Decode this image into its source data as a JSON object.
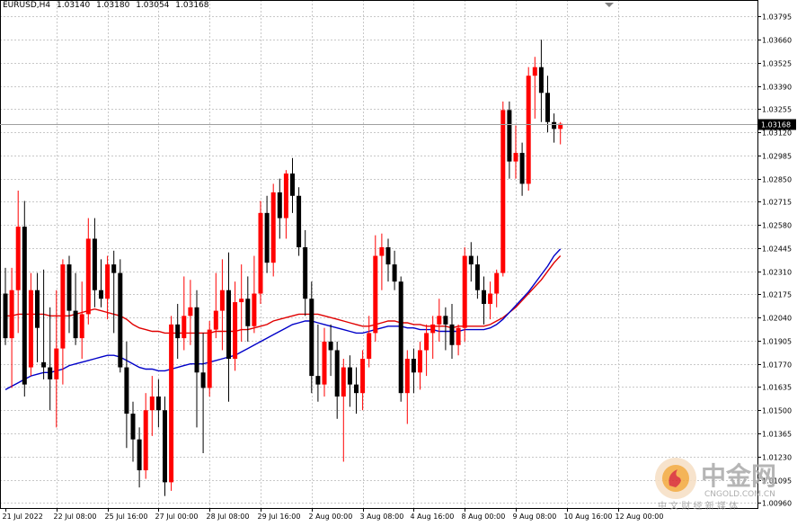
{
  "header": {
    "symbol": "EURUSD,H4",
    "open": "1.03140",
    "high": "1.03180",
    "low": "1.03054",
    "close": "1.03168"
  },
  "watermark": {
    "brand": "中金网",
    "url": "CNGOLD.COM.CN",
    "tagline": "中 文 财 经 新 媒 体"
  },
  "colors": {
    "bull": "#ff0000",
    "bear": "#000000",
    "ma_red": "#e00000",
    "ma_blue": "#0000c8",
    "grid": "#c8c8c8",
    "background": "#ffffff",
    "price_label_bg": "#000000"
  },
  "chart_data": {
    "type": "candlestick",
    "title": "EURUSD,H4",
    "timeframe": "H4",
    "grid": true,
    "current_price": "1.03168",
    "ylim": [
      1.0093,
      1.0386
    ],
    "y_ticks": [
      "1.03795",
      "1.03660",
      "1.03525",
      "1.03390",
      "1.03255",
      "1.03120",
      "1.02985",
      "1.02850",
      "1.02715",
      "1.02580",
      "1.02445",
      "1.02310",
      "1.02175",
      "1.02040",
      "1.01905",
      "1.01770",
      "1.01635",
      "1.01500",
      "1.01365",
      "1.01230",
      "1.01095",
      "1.00960"
    ],
    "x_labels": [
      {
        "label": "21 Jul 2022",
        "bar": 0
      },
      {
        "label": "22 Jul 08:00",
        "bar": 8
      },
      {
        "label": "25 Jul 16:00",
        "bar": 16
      },
      {
        "label": "27 Jul 00:00",
        "bar": 24
      },
      {
        "label": "28 Jul 08:00",
        "bar": 32
      },
      {
        "label": "29 Jul 16:00",
        "bar": 40
      },
      {
        "label": "2 Aug 00:00",
        "bar": 48
      },
      {
        "label": "3 Aug 08:00",
        "bar": 56
      },
      {
        "label": "4 Aug 16:00",
        "bar": 64
      },
      {
        "label": "8 Aug 00:00",
        "bar": 72
      },
      {
        "label": "9 Aug 08:00",
        "bar": 80
      },
      {
        "label": "10 Aug 16:00",
        "bar": 88
      },
      {
        "label": "12 Aug 00:00",
        "bar": 96
      }
    ],
    "ohlc": [
      [
        1.0218,
        1.0233,
        1.0188,
        1.0192
      ],
      [
        1.0192,
        1.0233,
        1.0163,
        1.022
      ],
      [
        1.022,
        1.0278,
        1.0195,
        1.0257
      ],
      [
        1.0257,
        1.0272,
        1.0158,
        1.0165
      ],
      [
        1.0175,
        1.023,
        1.017,
        1.022
      ],
      [
        1.022,
        1.023,
        1.0178,
        1.0198
      ],
      [
        1.0178,
        1.0232,
        1.0168,
        1.0175
      ],
      [
        1.0175,
        1.021,
        1.015,
        1.0168
      ],
      [
        1.0168,
        1.022,
        1.014,
        1.0186
      ],
      [
        1.0186,
        1.0238,
        1.0165,
        1.0235
      ],
      [
        1.0235,
        1.024,
        1.0195,
        1.0208
      ],
      [
        1.0208,
        1.023,
        1.0188,
        1.0192
      ],
      [
        1.0192,
        1.0225,
        1.018,
        1.0206
      ],
      [
        1.0206,
        1.0262,
        1.02,
        1.025
      ],
      [
        1.025,
        1.0262,
        1.021,
        1.022
      ],
      [
        1.022,
        1.0238,
        1.021,
        1.0215
      ],
      [
        1.0215,
        1.024,
        1.0203,
        1.0235
      ],
      [
        1.0235,
        1.0243,
        1.0195,
        1.023
      ],
      [
        1.023,
        1.0238,
        1.0172,
        1.0175
      ],
      [
        1.0175,
        1.019,
        1.0128,
        1.0148
      ],
      [
        1.0148,
        1.0155,
        1.012,
        1.0133
      ],
      [
        1.0133,
        1.014,
        1.0105,
        1.0115
      ],
      [
        1.0115,
        1.016,
        1.011,
        1.015
      ],
      [
        1.015,
        1.017,
        1.0135,
        1.0158
      ],
      [
        1.0158,
        1.0168,
        1.014,
        1.015
      ],
      [
        1.015,
        1.0158,
        1.01,
        1.0108
      ],
      [
        1.0108,
        1.0205,
        1.0103,
        1.02
      ],
      [
        1.02,
        1.0212,
        1.018,
        1.0192
      ],
      [
        1.0192,
        1.0228,
        1.0185,
        1.0205
      ],
      [
        1.0205,
        1.0226,
        1.0188,
        1.021
      ],
      [
        1.021,
        1.022,
        1.014,
        1.0172
      ],
      [
        1.0172,
        1.0195,
        1.0125,
        1.0163
      ],
      [
        1.0163,
        1.0202,
        1.0158,
        1.0197
      ],
      [
        1.0197,
        1.023,
        1.0192,
        1.0208
      ],
      [
        1.0208,
        1.0238,
        1.0185,
        1.022
      ],
      [
        1.022,
        1.0242,
        1.0155,
        1.018
      ],
      [
        1.018,
        1.0225,
        1.0173,
        1.0213
      ],
      [
        1.0213,
        1.0235,
        1.019,
        1.0215
      ],
      [
        1.0215,
        1.0228,
        1.019,
        1.0199
      ],
      [
        1.0199,
        1.024,
        1.0195,
        1.0218
      ],
      [
        1.0218,
        1.0272,
        1.0212,
        1.0265
      ],
      [
        1.0265,
        1.0275,
        1.023,
        1.0236
      ],
      [
        1.0236,
        1.0282,
        1.0228,
        1.0277
      ],
      [
        1.0277,
        1.0285,
        1.025,
        1.0262
      ],
      [
        1.0262,
        1.029,
        1.025,
        1.0288
      ],
      [
        1.0288,
        1.0297,
        1.0265,
        1.0275
      ],
      [
        1.0275,
        1.028,
        1.024,
        1.0245
      ],
      [
        1.0245,
        1.0255,
        1.0205,
        1.0215
      ],
      [
        1.0215,
        1.0225,
        1.016,
        1.017
      ],
      [
        1.017,
        1.02,
        1.0155,
        1.0165
      ],
      [
        1.0165,
        1.0198,
        1.0158,
        1.019
      ],
      [
        1.019,
        1.02,
        1.017,
        1.0185
      ],
      [
        1.0185,
        1.019,
        1.0145,
        1.0158
      ],
      [
        1.0158,
        1.018,
        1.012,
        1.0175
      ],
      [
        1.0175,
        1.0182,
        1.0152,
        1.0165
      ],
      [
        1.0165,
        1.0175,
        1.0148,
        1.016
      ],
      [
        1.016,
        1.0185,
        1.015,
        1.018
      ],
      [
        1.018,
        1.0205,
        1.0175,
        1.0195
      ],
      [
        1.0195,
        1.0252,
        1.019,
        1.024
      ],
      [
        1.024,
        1.0253,
        1.022,
        1.0245
      ],
      [
        1.0245,
        1.025,
        1.0225,
        1.0235
      ],
      [
        1.0235,
        1.0243,
        1.022,
        1.0225
      ],
      [
        1.0225,
        1.0228,
        1.0155,
        1.016
      ],
      [
        1.016,
        1.0185,
        1.0142,
        1.018
      ],
      [
        1.018,
        1.0186,
        1.016,
        1.0172
      ],
      [
        1.0172,
        1.019,
        1.0162,
        1.0185
      ],
      [
        1.0185,
        1.02,
        1.017,
        1.0195
      ],
      [
        1.0195,
        1.0205,
        1.018,
        1.02
      ],
      [
        1.02,
        1.0215,
        1.019,
        1.0205
      ],
      [
        1.0205,
        1.021,
        1.0185,
        1.02
      ],
      [
        1.02,
        1.0212,
        1.018,
        1.0188
      ],
      [
        1.0188,
        1.02,
        1.0182,
        1.0198
      ],
      [
        1.0198,
        1.0245,
        1.019,
        1.024
      ],
      [
        1.024,
        1.0248,
        1.0225,
        1.0235
      ],
      [
        1.0235,
        1.024,
        1.0215,
        1.022
      ],
      [
        1.022,
        1.0228,
        1.02,
        1.0212
      ],
      [
        1.0212,
        1.0225,
        1.0203,
        1.0218
      ],
      [
        1.0218,
        1.0232,
        1.021,
        1.023
      ],
      [
        1.023,
        1.033,
        1.0228,
        1.0325
      ],
      [
        1.0325,
        1.033,
        1.0285,
        1.0295
      ],
      [
        1.0295,
        1.0316,
        1.0285,
        1.03
      ],
      [
        1.03,
        1.0306,
        1.0275,
        1.0282
      ],
      [
        1.0282,
        1.035,
        1.0278,
        1.0345
      ],
      [
        1.0345,
        1.0356,
        1.032,
        1.035
      ],
      [
        1.035,
        1.0366,
        1.0318,
        1.0335
      ],
      [
        1.0335,
        1.0345,
        1.0312,
        1.0318
      ],
      [
        1.0318,
        1.0323,
        1.0306,
        1.0314
      ],
      [
        1.0314,
        1.0318,
        1.0305,
        1.0317
      ]
    ],
    "series": [
      {
        "values": [
          1.0205,
          1.0205,
          1.0206,
          1.0206,
          1.0206,
          1.0206,
          1.0206,
          1.0205,
          1.0205,
          1.0205,
          1.0205,
          1.0206,
          1.0207,
          1.0208,
          1.0209,
          1.0208,
          1.0207,
          1.0206,
          1.0205,
          1.0203,
          1.02,
          1.0198,
          1.0197,
          1.0196,
          1.0196,
          1.0195,
          1.0195,
          1.0195,
          1.0195,
          1.0195,
          1.0195,
          1.0195,
          1.0195,
          1.0196,
          1.0196,
          1.0196,
          1.0196,
          1.0197,
          1.0197,
          1.0198,
          1.0199,
          1.02,
          1.0202,
          1.0203,
          1.0204,
          1.0205,
          1.0206,
          1.0206,
          1.0206,
          1.0206,
          1.0205,
          1.0204,
          1.0203,
          1.0202,
          1.0201,
          1.02,
          1.0199,
          1.0199,
          1.02,
          1.0201,
          1.0202,
          1.0202,
          1.0201,
          1.0201,
          1.02,
          1.02,
          1.0199,
          1.0199,
          1.0199,
          1.0199,
          1.0198,
          1.0199,
          1.0199,
          1.0199,
          1.0199,
          1.0199,
          1.02,
          1.0202,
          1.0204,
          1.0207,
          1.021,
          1.0214,
          1.0218,
          1.0222,
          1.0226,
          1.0231,
          1.0236,
          1.024
        ]
      },
      {
        "values": [
          1.0162,
          1.0164,
          1.0166,
          1.0168,
          1.017,
          1.0171,
          1.0172,
          1.0172,
          1.0173,
          1.0174,
          1.0176,
          1.0177,
          1.0178,
          1.0179,
          1.018,
          1.0181,
          1.0182,
          1.0182,
          1.0181,
          1.0179,
          1.0177,
          1.0175,
          1.0174,
          1.0174,
          1.0173,
          1.0173,
          1.0174,
          1.0175,
          1.0176,
          1.0177,
          1.0177,
          1.0177,
          1.0178,
          1.0179,
          1.018,
          1.0181,
          1.0182,
          1.0184,
          1.0186,
          1.0188,
          1.019,
          1.0192,
          1.0194,
          1.0196,
          1.0198,
          1.02,
          1.0201,
          1.0202,
          1.0202,
          1.0201,
          1.02,
          1.0199,
          1.0198,
          1.0197,
          1.0196,
          1.0195,
          1.0195,
          1.0196,
          1.0197,
          1.0198,
          1.0199,
          1.0199,
          1.0199,
          1.0198,
          1.0198,
          1.0197,
          1.0197,
          1.0197,
          1.0196,
          1.0196,
          1.0196,
          1.0196,
          1.0197,
          1.0197,
          1.0197,
          1.0197,
          1.0198,
          1.02,
          1.0203,
          1.0207,
          1.0211,
          1.0215,
          1.0219,
          1.0224,
          1.0229,
          1.0234,
          1.024,
          1.0244
        ]
      }
    ]
  }
}
